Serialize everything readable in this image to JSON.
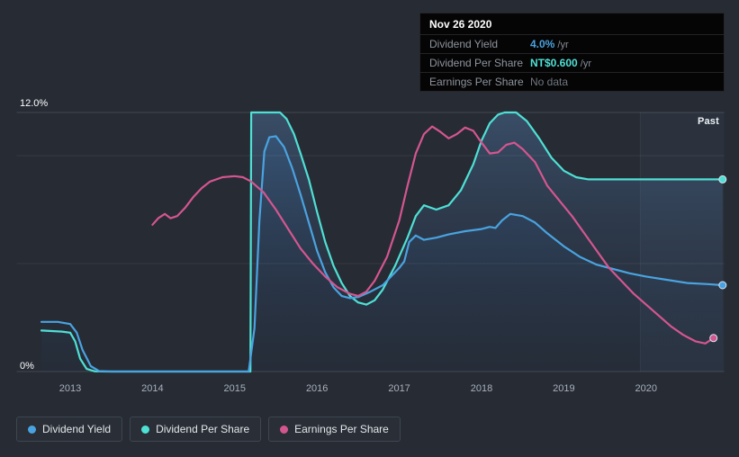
{
  "colors": {
    "background": "#262b34",
    "dividend_yield": "#4aa3e0",
    "dividend_per_share": "#4fe0d4",
    "earnings_per_share": "#d4568f",
    "tooltip_bg": "#050506",
    "axis_label": "#a9b1bb",
    "grid_strong": "rgba(255,255,255,0.14)",
    "grid_faint": "rgba(255,255,255,0.07)"
  },
  "past_label": "Past",
  "tooltip": {
    "date": "Nov 26 2020",
    "rows": [
      {
        "label": "Dividend Yield",
        "value": "4.0%",
        "suffix": " /yr",
        "value_color": "#4aa3e0",
        "strong": true
      },
      {
        "label": "Dividend Per Share",
        "value": "NT$0.600",
        "suffix": " /yr",
        "value_color": "#4fe0d4",
        "strong": true
      },
      {
        "label": "Earnings Per Share",
        "value": "No data",
        "suffix": "",
        "value_color": "#70767e",
        "strong": false
      }
    ]
  },
  "legend": [
    {
      "label": "Dividend Yield",
      "color": "#4aa3e0"
    },
    {
      "label": "Dividend Per Share",
      "color": "#4fe0d4"
    },
    {
      "label": "Earnings Per Share",
      "color": "#d4568f"
    }
  ],
  "chart_data": {
    "type": "line",
    "title": "",
    "xlabel": "",
    "ylabel": "",
    "x_unit": "year",
    "xlim": [
      2012.35,
      2020.95
    ],
    "ylim": [
      0,
      12
    ],
    "x_ticks": [
      2013,
      2014,
      2015,
      2016,
      2017,
      2018,
      2019,
      2020
    ],
    "y_tick_labels": [
      {
        "pct": 12,
        "label": "12.0%",
        "dy": -16
      },
      {
        "pct": 0,
        "label": "0%",
        "dy": -12
      }
    ],
    "y_gridlines": [
      12,
      10,
      5,
      0
    ],
    "grid": true,
    "legend_position": "bottom-left",
    "past_band_start": 2019.93,
    "series": [
      {
        "name": "Dividend Per Share",
        "color": "#4fe0d4",
        "end_dot": true,
        "fill": [
          "rgba(96,150,210,0.32)",
          "rgba(40,60,95,0.06)"
        ],
        "points": [
          [
            2012.65,
            1.9
          ],
          [
            2012.9,
            1.85
          ],
          [
            2013.0,
            1.8
          ],
          [
            2013.06,
            1.4
          ],
          [
            2013.12,
            0.6
          ],
          [
            2013.2,
            0.12
          ],
          [
            2013.3,
            0.01
          ],
          [
            2013.45,
            0
          ],
          [
            2015.19,
            0
          ],
          [
            2015.2,
            12
          ],
          [
            2015.55,
            12
          ],
          [
            2015.63,
            11.7
          ],
          [
            2015.72,
            11.0
          ],
          [
            2015.8,
            10.1
          ],
          [
            2015.9,
            8.9
          ],
          [
            2016.0,
            7.4
          ],
          [
            2016.1,
            6.0
          ],
          [
            2016.2,
            4.9
          ],
          [
            2016.3,
            4.1
          ],
          [
            2016.4,
            3.5
          ],
          [
            2016.5,
            3.2
          ],
          [
            2016.6,
            3.1
          ],
          [
            2016.7,
            3.3
          ],
          [
            2016.8,
            3.8
          ],
          [
            2016.95,
            4.9
          ],
          [
            2017.1,
            6.2
          ],
          [
            2017.2,
            7.2
          ],
          [
            2017.3,
            7.7
          ],
          [
            2017.45,
            7.5
          ],
          [
            2017.6,
            7.7
          ],
          [
            2017.75,
            8.4
          ],
          [
            2017.9,
            9.6
          ],
          [
            2018.0,
            10.7
          ],
          [
            2018.1,
            11.5
          ],
          [
            2018.2,
            11.9
          ],
          [
            2018.28,
            12
          ],
          [
            2018.42,
            12
          ],
          [
            2018.55,
            11.6
          ],
          [
            2018.7,
            10.8
          ],
          [
            2018.85,
            9.9
          ],
          [
            2019.0,
            9.3
          ],
          [
            2019.15,
            9.0
          ],
          [
            2019.3,
            8.9
          ],
          [
            2019.6,
            8.9
          ],
          [
            2020.0,
            8.9
          ],
          [
            2020.5,
            8.9
          ],
          [
            2020.93,
            8.9
          ]
        ]
      },
      {
        "name": "Dividend Yield",
        "color": "#4aa3e0",
        "end_dot": true,
        "fill": [
          "rgba(60,130,200,0.22)",
          "rgba(30,60,100,0.04)"
        ],
        "points": [
          [
            2012.65,
            2.3
          ],
          [
            2012.85,
            2.3
          ],
          [
            2013.0,
            2.2
          ],
          [
            2013.08,
            1.8
          ],
          [
            2013.15,
            1.0
          ],
          [
            2013.25,
            0.25
          ],
          [
            2013.35,
            0.02
          ],
          [
            2013.5,
            0
          ],
          [
            2015.17,
            0
          ],
          [
            2015.24,
            2.0
          ],
          [
            2015.3,
            7.0
          ],
          [
            2015.36,
            10.2
          ],
          [
            2015.42,
            10.85
          ],
          [
            2015.5,
            10.9
          ],
          [
            2015.6,
            10.4
          ],
          [
            2015.7,
            9.4
          ],
          [
            2015.8,
            8.2
          ],
          [
            2015.9,
            6.9
          ],
          [
            2016.0,
            5.6
          ],
          [
            2016.1,
            4.6
          ],
          [
            2016.2,
            3.9
          ],
          [
            2016.3,
            3.5
          ],
          [
            2016.4,
            3.4
          ],
          [
            2016.5,
            3.45
          ],
          [
            2016.65,
            3.7
          ],
          [
            2016.8,
            4.0
          ],
          [
            2016.9,
            4.4
          ],
          [
            2017.0,
            4.8
          ],
          [
            2017.06,
            5.1
          ],
          [
            2017.12,
            6.0
          ],
          [
            2017.2,
            6.3
          ],
          [
            2017.3,
            6.1
          ],
          [
            2017.45,
            6.2
          ],
          [
            2017.6,
            6.35
          ],
          [
            2017.8,
            6.5
          ],
          [
            2018.0,
            6.6
          ],
          [
            2018.1,
            6.7
          ],
          [
            2018.17,
            6.65
          ],
          [
            2018.25,
            7.0
          ],
          [
            2018.35,
            7.3
          ],
          [
            2018.5,
            7.2
          ],
          [
            2018.65,
            6.9
          ],
          [
            2018.8,
            6.4
          ],
          [
            2019.0,
            5.8
          ],
          [
            2019.2,
            5.3
          ],
          [
            2019.4,
            4.95
          ],
          [
            2019.6,
            4.75
          ],
          [
            2019.8,
            4.55
          ],
          [
            2020.0,
            4.4
          ],
          [
            2020.25,
            4.25
          ],
          [
            2020.5,
            4.1
          ],
          [
            2020.75,
            4.05
          ],
          [
            2020.93,
            4.0
          ]
        ]
      },
      {
        "name": "Earnings Per Share",
        "color": "#d4568f",
        "end_dot": true,
        "fill": null,
        "points": [
          [
            2014.0,
            6.8
          ],
          [
            2014.07,
            7.1
          ],
          [
            2014.15,
            7.3
          ],
          [
            2014.22,
            7.1
          ],
          [
            2014.3,
            7.2
          ],
          [
            2014.4,
            7.6
          ],
          [
            2014.5,
            8.1
          ],
          [
            2014.6,
            8.5
          ],
          [
            2014.7,
            8.8
          ],
          [
            2014.85,
            9.0
          ],
          [
            2015.0,
            9.05
          ],
          [
            2015.1,
            9.0
          ],
          [
            2015.2,
            8.8
          ],
          [
            2015.35,
            8.3
          ],
          [
            2015.5,
            7.5
          ],
          [
            2015.65,
            6.6
          ],
          [
            2015.8,
            5.7
          ],
          [
            2015.95,
            5.0
          ],
          [
            2016.1,
            4.4
          ],
          [
            2016.25,
            3.9
          ],
          [
            2016.4,
            3.6
          ],
          [
            2016.5,
            3.5
          ],
          [
            2016.6,
            3.7
          ],
          [
            2016.7,
            4.2
          ],
          [
            2016.85,
            5.3
          ],
          [
            2017.0,
            7.0
          ],
          [
            2017.1,
            8.6
          ],
          [
            2017.2,
            10.1
          ],
          [
            2017.3,
            11.0
          ],
          [
            2017.4,
            11.35
          ],
          [
            2017.5,
            11.1
          ],
          [
            2017.6,
            10.8
          ],
          [
            2017.7,
            11.0
          ],
          [
            2017.8,
            11.3
          ],
          [
            2017.9,
            11.15
          ],
          [
            2018.0,
            10.6
          ],
          [
            2018.1,
            10.1
          ],
          [
            2018.2,
            10.15
          ],
          [
            2018.3,
            10.5
          ],
          [
            2018.4,
            10.6
          ],
          [
            2018.5,
            10.3
          ],
          [
            2018.65,
            9.7
          ],
          [
            2018.8,
            8.6
          ],
          [
            2018.95,
            7.9
          ],
          [
            2019.1,
            7.2
          ],
          [
            2019.25,
            6.4
          ],
          [
            2019.4,
            5.6
          ],
          [
            2019.55,
            4.8
          ],
          [
            2019.7,
            4.2
          ],
          [
            2019.85,
            3.6
          ],
          [
            2020.0,
            3.1
          ],
          [
            2020.15,
            2.6
          ],
          [
            2020.3,
            2.1
          ],
          [
            2020.45,
            1.7
          ],
          [
            2020.6,
            1.4
          ],
          [
            2020.72,
            1.3
          ],
          [
            2020.82,
            1.55
          ]
        ]
      }
    ]
  }
}
